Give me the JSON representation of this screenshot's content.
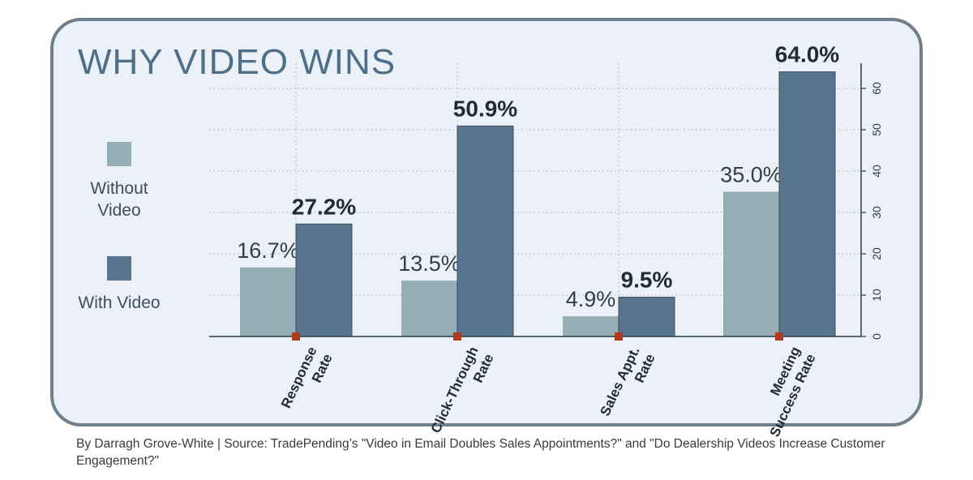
{
  "title": "WHY VIDEO WINS",
  "legend": [
    {
      "label": "Without Video",
      "color": "#95adb5"
    },
    {
      "label": "With Video",
      "color": "#587590"
    }
  ],
  "credit": "By Darragh Grove-White  |  Source: TradePending’s \"Video in Email Doubles Sales Appointments?\" and \"Do Dealership Videos Increase Customer Engagement?\"",
  "colors": {
    "without": "#95adb5",
    "with": "#587590",
    "axis": "#2b3a45",
    "marker": "#b23a1e",
    "panel": "#ebf1f6",
    "border": "#6f7f8c"
  },
  "chart_data": {
    "type": "bar",
    "categories": [
      "Response Rate",
      "Click-Through Rate",
      "Sales Appt. Rate",
      "Meeting Success Rate"
    ],
    "category_lines": [
      [
        "Response",
        "Rate"
      ],
      [
        "Click-Through",
        "Rate"
      ],
      [
        "Sales Appt.",
        "Rate"
      ],
      [
        "Meeting",
        "Success Rate"
      ]
    ],
    "series": [
      {
        "name": "Without Video",
        "values": [
          16.7,
          13.5,
          4.9,
          35.0
        ],
        "labels": [
          "16.7%",
          "13.5%",
          "4.9%",
          "35.0%"
        ]
      },
      {
        "name": "With Video",
        "values": [
          27.2,
          50.9,
          9.5,
          64.0
        ],
        "labels": [
          "27.2%",
          "50.9%",
          "9.5%",
          "64.0%"
        ]
      }
    ],
    "yticks": [
      0,
      10,
      20,
      30,
      40,
      50,
      60
    ],
    "ylim": [
      0,
      64
    ],
    "y_axis_side": "right",
    "grid": true
  }
}
